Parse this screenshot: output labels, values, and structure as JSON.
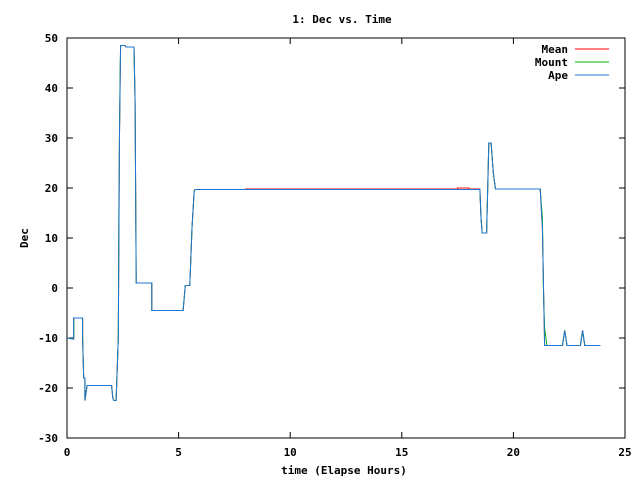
{
  "chart_data": {
    "type": "line",
    "title": "1: Dec vs. Time",
    "xlabel": "time (Elapse Hours)",
    "ylabel": "Dec",
    "xlim": [
      0,
      25
    ],
    "ylim": [
      -30,
      50
    ],
    "xticks": [
      0,
      5,
      10,
      15,
      20,
      25
    ],
    "yticks": [
      -30,
      -20,
      -10,
      0,
      10,
      20,
      30,
      40,
      50
    ],
    "grid": false,
    "legend_position": "top-right",
    "series": [
      {
        "name": "Mean",
        "color": "#ff0000",
        "x": [
          0,
          0.3,
          0.3,
          0.7,
          0.7,
          0.75,
          0.8,
          0.8,
          0.85,
          0.9,
          1.0,
          1.0,
          1.5,
          2.0,
          2.05,
          2.1,
          2.2,
          2.3,
          2.35,
          2.4,
          2.45,
          2.5,
          2.6,
          2.65,
          3.0,
          3.05,
          3.1,
          3.2,
          3.8,
          3.8,
          4.2,
          5.0,
          5.2,
          5.3,
          5.5,
          5.6,
          5.7,
          5.75,
          8.0,
          8.0,
          17.5,
          17.5,
          18.0,
          18.0,
          18.5,
          18.55,
          18.6,
          18.7,
          18.8,
          18.85,
          18.9,
          19.0,
          19.1,
          19.2,
          19.3,
          19.3,
          21.2,
          21.3,
          21.4,
          21.5,
          22.2,
          22.3,
          22.4,
          22.5,
          23.0,
          23.1,
          23.2,
          23.3,
          23.9
        ],
        "y": [
          -10,
          -10.2,
          -6,
          -6,
          -10,
          -18,
          -18,
          -22.5,
          -21,
          -19.5,
          -19.5,
          -19.5,
          -19.5,
          -19.5,
          -22,
          -22.5,
          -22.5,
          -10,
          31,
          48.5,
          48.5,
          48.5,
          48.5,
          48.2,
          48.2,
          37,
          1,
          1,
          1,
          -4.5,
          -4.5,
          -4.5,
          -4.5,
          0.5,
          0.5,
          12,
          19.5,
          19.7,
          19.7,
          19.8,
          19.8,
          20,
          20,
          19.8,
          19.8,
          14,
          11,
          11,
          11,
          19.8,
          29,
          29,
          23,
          19.8,
          19.8,
          19.8,
          19.8,
          12,
          -11.5,
          -11.5,
          -11.5,
          -8.5,
          -11.5,
          -11.5,
          -11.5,
          -8.5,
          -11.5,
          -11.5,
          -11.5
        ]
      },
      {
        "name": "Mount",
        "color": "#00b000",
        "x": [
          0,
          0.3,
          0.3,
          0.7,
          0.7,
          0.75,
          0.8,
          0.8,
          0.85,
          0.9,
          1.0,
          1.0,
          1.5,
          2.0,
          2.05,
          2.1,
          2.2,
          2.3,
          2.32,
          2.35,
          2.38,
          2.4,
          2.45,
          2.5,
          2.6,
          2.65,
          3.0,
          3.05,
          3.1,
          3.2,
          3.8,
          3.8,
          4.2,
          5.0,
          5.2,
          5.3,
          5.5,
          5.6,
          5.7,
          5.75,
          8.0,
          8.0,
          17.5,
          17.5,
          18.0,
          18.0,
          18.5,
          18.55,
          18.6,
          18.7,
          18.8,
          18.85,
          18.9,
          19.0,
          19.1,
          19.2,
          19.3,
          19.3,
          21.2,
          21.3,
          21.35,
          21.4,
          21.5,
          22.2,
          22.3,
          22.4,
          22.5,
          23.0,
          23.1,
          23.2,
          23.3,
          23.9
        ],
        "y": [
          -10,
          -10.2,
          -6,
          -6,
          -10,
          -18,
          -18,
          -22.5,
          -21,
          -19.5,
          -19.5,
          -19.5,
          -19.5,
          -19.5,
          -22,
          -22.5,
          -22.5,
          -10,
          14,
          31,
          43,
          48.5,
          48.5,
          48.5,
          48.5,
          48.2,
          48.2,
          37,
          1,
          1,
          1,
          -4.5,
          -4.5,
          -4.5,
          -4.5,
          0.5,
          0.5,
          12,
          19.5,
          19.7,
          19.7,
          19.7,
          19.7,
          19.7,
          19.7,
          19.7,
          19.7,
          14,
          11,
          11,
          11,
          19.8,
          29,
          29,
          23,
          19.8,
          19.8,
          19.8,
          19.8,
          14,
          -1,
          -8,
          -11.5,
          -11.5,
          -8.5,
          -11.5,
          -11.5,
          -11.5,
          -8.5,
          -11.5,
          -11.5,
          -11.5
        ]
      },
      {
        "name": "Ape",
        "color": "#1f77d4",
        "x": [
          0,
          0.3,
          0.3,
          0.7,
          0.7,
          0.75,
          0.8,
          0.8,
          0.85,
          0.9,
          1.0,
          1.0,
          1.5,
          2.0,
          2.05,
          2.1,
          2.2,
          2.3,
          2.35,
          2.4,
          2.45,
          2.5,
          2.6,
          2.65,
          3.0,
          3.05,
          3.1,
          3.2,
          3.8,
          3.8,
          4.2,
          5.0,
          5.2,
          5.3,
          5.5,
          5.6,
          5.7,
          5.75,
          8.0,
          8.0,
          17.5,
          17.5,
          18.0,
          18.0,
          18.5,
          18.55,
          18.6,
          18.7,
          18.8,
          18.85,
          18.9,
          19.0,
          19.1,
          19.2,
          19.3,
          19.3,
          21.2,
          21.3,
          21.4,
          21.5,
          22.2,
          22.3,
          22.4,
          22.5,
          23.0,
          23.1,
          23.2,
          23.3,
          23.9
        ],
        "y": [
          -10,
          -10.2,
          -6,
          -6,
          -10,
          -18,
          -18,
          -22.5,
          -21,
          -19.5,
          -19.5,
          -19.5,
          -19.5,
          -19.5,
          -22,
          -22.5,
          -22.5,
          -10,
          31,
          48.5,
          48.5,
          48.5,
          48.5,
          48.2,
          48.2,
          37,
          1,
          1,
          1,
          -4.5,
          -4.5,
          -4.5,
          -4.5,
          0.5,
          0.5,
          12,
          19.5,
          19.7,
          19.7,
          19.7,
          19.7,
          19.7,
          19.7,
          19.7,
          19.7,
          14,
          11,
          11,
          11,
          19.8,
          29,
          29,
          23,
          19.8,
          19.8,
          19.8,
          19.8,
          12,
          -11.5,
          -11.5,
          -11.5,
          -8.5,
          -11.5,
          -11.5,
          -11.5,
          -8.5,
          -11.5,
          -11.5,
          -11.5
        ]
      }
    ]
  }
}
